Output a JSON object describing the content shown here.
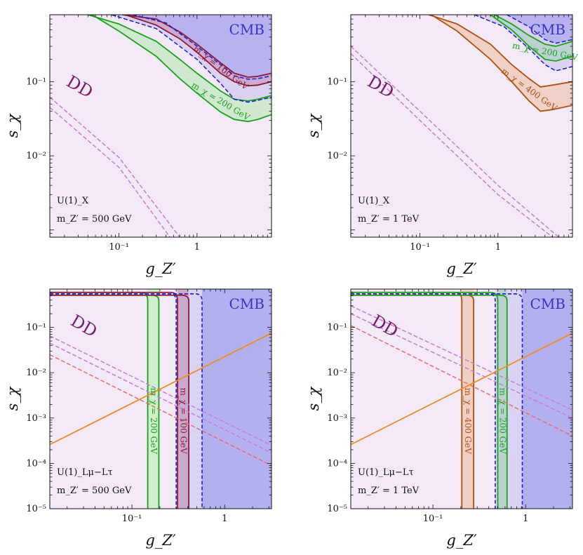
{
  "chart_data": [
    {
      "id": "tl",
      "type": "area",
      "xlim": [
        0.013,
        9
      ],
      "ylim": [
        0.0008,
        0.8
      ],
      "xscale": "log",
      "yscale": "log",
      "xticks": [
        {
          "v": 0.1,
          "t": "10⁻¹"
        },
        {
          "v": 1,
          "t": "1"
        }
      ],
      "yticks": [
        {
          "v": 0.01,
          "t": "10⁻²"
        },
        {
          "v": 0.1,
          "t": "10⁻¹"
        }
      ],
      "xlabel": "g_Z′",
      "ylabel": "s_χ",
      "model_label": "U(1)_X",
      "mass_label": "m_Z′ = 500 GeV",
      "dd_label": "DD",
      "cmb_label": "CMB",
      "colors": {
        "dd": "#f4e9f6",
        "cmb": "#b3b0f0",
        "green": "#1aa31a",
        "greenfill": "#c9e8c9",
        "red": "#8c1a3c",
        "redfill": "#c9a4c8",
        "blue": "#1a1adc",
        "pink": "#c77cd6",
        "orange": "#f08c20"
      },
      "series": [
        {
          "kind": "band",
          "color": "green",
          "name": "m_χ = 200 GeV",
          "upper": [
            [
              0.04,
              0.8
            ],
            [
              0.1,
              0.6
            ],
            [
              0.3,
              0.35
            ],
            [
              0.6,
              0.2
            ],
            [
              1,
              0.13
            ],
            [
              2,
              0.075
            ],
            [
              3,
              0.058
            ],
            [
              4.5,
              0.055
            ],
            [
              6,
              0.058
            ],
            [
              9,
              0.065
            ]
          ],
          "lower": [
            [
              0.045,
              0.8
            ],
            [
              0.1,
              0.48
            ],
            [
              0.3,
              0.22
            ],
            [
              0.6,
              0.11
            ],
            [
              1,
              0.07
            ],
            [
              2,
              0.039
            ],
            [
              3,
              0.031
            ],
            [
              4.5,
              0.029
            ],
            [
              6,
              0.031
            ],
            [
              9,
              0.036
            ]
          ]
        },
        {
          "kind": "band",
          "color": "red",
          "name": "m_χ = 100 GeV",
          "upper": [
            [
              0.11,
              0.8
            ],
            [
              0.3,
              0.7
            ],
            [
              0.6,
              0.47
            ],
            [
              1,
              0.32
            ],
            [
              2,
              0.18
            ],
            [
              3,
              0.13
            ],
            [
              4.5,
              0.115
            ],
            [
              6,
              0.118
            ],
            [
              9,
              0.13
            ]
          ],
          "lower": [
            [
              0.12,
              0.8
            ],
            [
              0.3,
              0.58
            ],
            [
              0.6,
              0.38
            ],
            [
              1,
              0.25
            ],
            [
              2,
              0.13
            ],
            [
              3,
              0.1
            ],
            [
              4.5,
              0.088
            ],
            [
              6,
              0.09
            ],
            [
              9,
              0.1
            ]
          ]
        },
        {
          "kind": "dashed",
          "color": "blue",
          "points": [
            [
              0.08,
              0.8
            ],
            [
              0.3,
              0.52
            ],
            [
              0.6,
              0.3
            ],
            [
              1,
              0.2
            ],
            [
              2,
              0.095
            ],
            [
              3,
              0.058
            ],
            [
              4.5,
              0.053
            ],
            [
              6,
              0.056
            ],
            [
              9,
              0.062
            ]
          ]
        },
        {
          "kind": "dashed",
          "color": "blue",
          "points": [
            [
              0.15,
              0.8
            ],
            [
              0.4,
              0.62
            ],
            [
              1,
              0.3
            ],
            [
              2,
              0.17
            ],
            [
              3,
              0.12
            ],
            [
              4.5,
              0.108
            ],
            [
              6,
              0.11
            ],
            [
              9,
              0.12
            ]
          ]
        },
        {
          "kind": "dashed",
          "color": "pink",
          "points": [
            [
              0.013,
              0.062
            ],
            [
              0.1,
              0.0095
            ],
            [
              0.6,
              0.0008
            ]
          ]
        },
        {
          "kind": "dashed",
          "color": "pink",
          "points": [
            [
              0.013,
              0.045
            ],
            [
              0.1,
              0.007
            ],
            [
              0.45,
              0.0008
            ]
          ]
        }
      ]
    },
    {
      "id": "tr",
      "type": "area",
      "xlim": [
        0.013,
        9
      ],
      "ylim": [
        0.0008,
        0.8
      ],
      "xscale": "log",
      "yscale": "log",
      "xticks": [
        {
          "v": 0.1,
          "t": "10⁻¹"
        },
        {
          "v": 1,
          "t": "1"
        }
      ],
      "yticks": [
        {
          "v": 0.01,
          "t": "10⁻²"
        },
        {
          "v": 0.1,
          "t": "10⁻¹"
        }
      ],
      "xlabel": "g_Z′",
      "ylabel": "s_χ",
      "model_label": "U(1)_X",
      "mass_label": "m_Z′ = 1 TeV",
      "dd_label": "DD",
      "cmb_label": "CMB",
      "colors": {
        "dd": "#f4e9f6",
        "cmb": "#b3b0f0",
        "green": "#1aa31a",
        "greenfill": "#b6d2cc",
        "brown": "#b0500f",
        "brownfill": "#efcdbf",
        "blue": "#1a1adc",
        "pink": "#c77cd6"
      },
      "series": [
        {
          "kind": "band",
          "color": "brown",
          "name": "m_χ = 400 GeV",
          "upper": [
            [
              0.13,
              0.8
            ],
            [
              0.3,
              0.6
            ],
            [
              0.8,
              0.32
            ],
            [
              1.5,
              0.17
            ],
            [
              2.5,
              0.11
            ],
            [
              3.5,
              0.085
            ],
            [
              5,
              0.09
            ],
            [
              9,
              0.1
            ]
          ],
          "lower": [
            [
              0.14,
              0.8
            ],
            [
              0.3,
              0.48
            ],
            [
              0.8,
              0.2
            ],
            [
              1.5,
              0.1
            ],
            [
              2.5,
              0.055
            ],
            [
              3.5,
              0.04
            ],
            [
              5,
              0.042
            ],
            [
              9,
              0.048
            ]
          ]
        },
        {
          "kind": "band",
          "color": "green",
          "name": "m_χ = 200 GeV",
          "upper": [
            [
              0.9,
              0.8
            ],
            [
              1.5,
              0.6
            ],
            [
              2.5,
              0.42
            ],
            [
              4,
              0.32
            ],
            [
              5.5,
              0.3
            ],
            [
              9,
              0.35
            ]
          ],
          "lower": [
            [
              0.8,
              0.8
            ],
            [
              1.5,
              0.5
            ],
            [
              2.5,
              0.3
            ],
            [
              4,
              0.2
            ],
            [
              5.5,
              0.19
            ],
            [
              9,
              0.22
            ]
          ]
        },
        {
          "kind": "dashed",
          "color": "blue",
          "points": [
            [
              0.5,
              0.8
            ],
            [
              1.2,
              0.55
            ],
            [
              2.5,
              0.28
            ],
            [
              4,
              0.17
            ],
            [
              5.5,
              0.14
            ],
            [
              9,
              0.16
            ]
          ]
        },
        {
          "kind": "dashed",
          "color": "blue",
          "points": [
            [
              1.3,
              0.8
            ],
            [
              2.5,
              0.55
            ],
            [
              4,
              0.37
            ],
            [
              5.5,
              0.33
            ],
            [
              9,
              0.37
            ]
          ]
        },
        {
          "kind": "dashed",
          "color": "pink",
          "points": [
            [
              0.013,
              0.3
            ],
            [
              0.1,
              0.04
            ],
            [
              1,
              0.004
            ],
            [
              6,
              0.0008
            ]
          ]
        },
        {
          "kind": "dashed",
          "color": "pink",
          "points": [
            [
              0.013,
              0.24
            ],
            [
              0.1,
              0.03
            ],
            [
              1,
              0.003
            ],
            [
              5,
              0.0008
            ]
          ]
        }
      ]
    },
    {
      "id": "bl",
      "type": "area",
      "xlim": [
        0.013,
        3.2
      ],
      "ylim": [
        1e-05,
        0.7
      ],
      "xscale": "log",
      "yscale": "log",
      "xticks": [
        {
          "v": 0.1,
          "t": "10⁻¹"
        },
        {
          "v": 1,
          "t": "1"
        }
      ],
      "yticks": [
        {
          "v": 1e-05,
          "t": "10⁻⁵"
        },
        {
          "v": 0.0001,
          "t": "10⁻⁴"
        },
        {
          "v": 0.001,
          "t": "10⁻³"
        },
        {
          "v": 0.01,
          "t": "10⁻²"
        },
        {
          "v": 0.1,
          "t": "10⁻¹"
        }
      ],
      "xlabel": "g_Z′",
      "ylabel": "s_χ",
      "model_label": "U(1)_Lμ−Lτ",
      "mass_label": "m_Z′ = 500 GeV",
      "dd_label": "DD",
      "cmb_label": "CMB",
      "colors": {
        "dd": "#f4e9f6",
        "cmb": "#b3b0f0",
        "green": "#1aa31a",
        "greenfill": "#ccefc9",
        "red": "#8c1a3c",
        "redfill": "#c9a4c8",
        "blue": "#1a1adc",
        "pink": "#c77cd6",
        "salmon": "#e86e6e",
        "orange": "#f08c20"
      },
      "series": [
        {
          "kind": "vband",
          "color": "green",
          "name": "m_χ = 200 GeV",
          "left": 0.148,
          "right": 0.195,
          "corner": 0.55
        },
        {
          "kind": "vband",
          "color": "red",
          "name": "m_χ = 100 GeV",
          "left": 0.31,
          "right": 0.41,
          "corner": 0.55
        },
        {
          "kind": "vdashed",
          "color": "blue",
          "x": 0.3,
          "corner": 0.55
        },
        {
          "kind": "vdashed",
          "color": "blue",
          "x": 0.57,
          "corner": 0.55
        },
        {
          "kind": "dashed",
          "color": "pink",
          "points": [
            [
              0.013,
              0.065
            ],
            [
              3.2,
              0.00025
            ]
          ]
        },
        {
          "kind": "dashed",
          "color": "pink",
          "points": [
            [
              0.013,
              0.045
            ],
            [
              3.2,
              0.00017
            ]
          ]
        },
        {
          "kind": "dashed",
          "color": "salmon",
          "points": [
            [
              0.013,
              0.025
            ],
            [
              3.2,
              9e-05
            ]
          ]
        },
        {
          "kind": "solid",
          "color": "orange",
          "points": [
            [
              0.013,
              0.00026
            ],
            [
              3.2,
              0.075
            ]
          ]
        }
      ]
    },
    {
      "id": "br",
      "type": "area",
      "xlim": [
        0.013,
        3.2
      ],
      "ylim": [
        1e-05,
        0.7
      ],
      "xscale": "log",
      "yscale": "log",
      "xticks": [
        {
          "v": 0.1,
          "t": "10⁻¹"
        },
        {
          "v": 1,
          "t": "1"
        }
      ],
      "yticks": [
        {
          "v": 1e-05,
          "t": "10⁻⁵"
        },
        {
          "v": 0.0001,
          "t": "10⁻⁴"
        },
        {
          "v": 0.001,
          "t": "10⁻³"
        },
        {
          "v": 0.01,
          "t": "10⁻²"
        },
        {
          "v": 0.1,
          "t": "10⁻¹"
        }
      ],
      "xlabel": "g_Z′",
      "ylabel": "s_χ",
      "model_label": "U(1)_Lμ−Lτ",
      "mass_label": "m_Z′ = 1 TeV",
      "dd_label": "DD",
      "cmb_label": "CMB",
      "colors": {
        "dd": "#f4e9f6",
        "cmb": "#b3b0f0",
        "green": "#1aa31a",
        "greenfill": "#b6d2cc",
        "brown": "#b0500f",
        "brownfill": "#efcdbf",
        "blue": "#1a1adc",
        "pink": "#c77cd6",
        "salmon": "#e86e6e",
        "orange": "#f08c20"
      },
      "series": [
        {
          "kind": "vband",
          "color": "brown",
          "name": "m_χ = 400 GeV",
          "left": 0.205,
          "right": 0.275,
          "corner": 0.55
        },
        {
          "kind": "vband",
          "color": "green",
          "name": "m_χ = 200 GeV",
          "left": 0.5,
          "right": 0.63,
          "corner": 0.55
        },
        {
          "kind": "vdashed",
          "color": "blue",
          "x": 0.47,
          "corner": 0.55
        },
        {
          "kind": "vdashed",
          "color": "blue",
          "x": 0.92,
          "corner": 0.55
        },
        {
          "kind": "dashed",
          "color": "pink",
          "points": [
            [
              0.013,
              0.3
            ],
            [
              3.2,
              0.0015
            ]
          ]
        },
        {
          "kind": "dashed",
          "color": "pink",
          "points": [
            [
              0.013,
              0.2
            ],
            [
              3.2,
              0.001
            ]
          ]
        },
        {
          "kind": "dashed",
          "color": "salmon",
          "points": [
            [
              0.013,
              0.11
            ],
            [
              3.2,
              0.0004
            ]
          ]
        },
        {
          "kind": "solid",
          "color": "orange",
          "points": [
            [
              0.013,
              0.00026
            ],
            [
              3.2,
              0.075
            ]
          ]
        }
      ]
    }
  ]
}
